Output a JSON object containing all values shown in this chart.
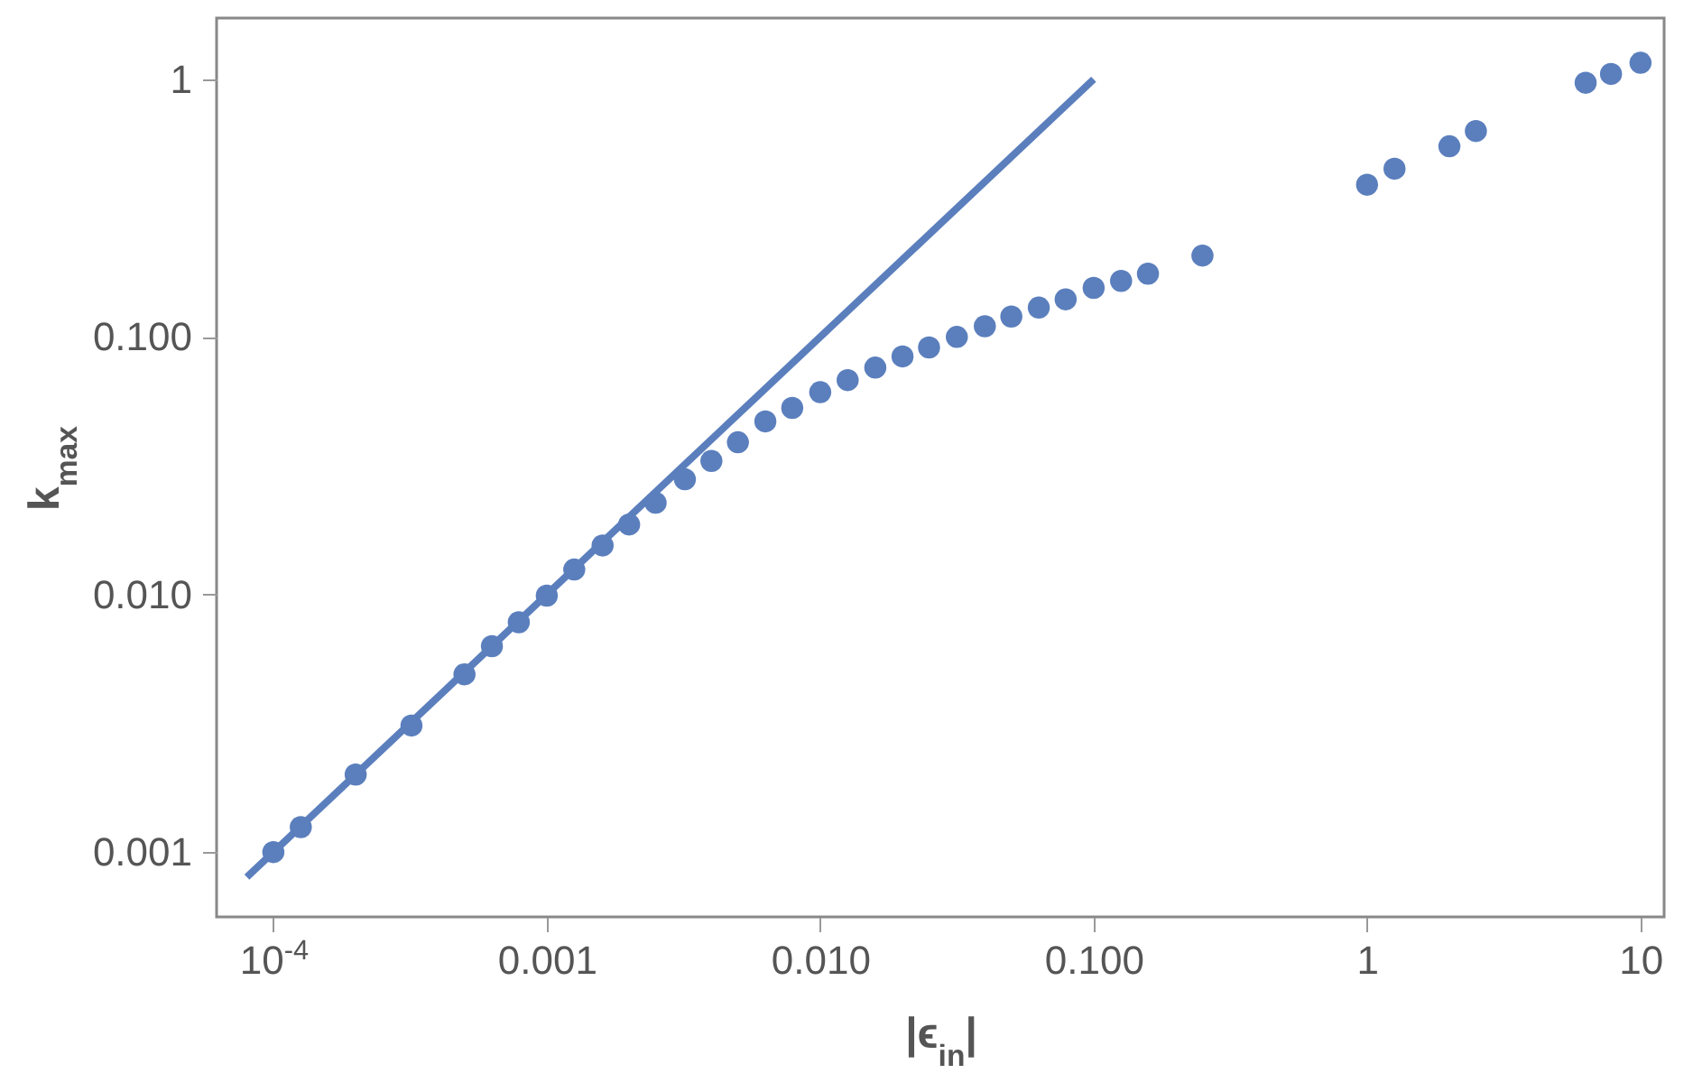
{
  "chart_data": {
    "type": "scatter",
    "xlabel": "|ϵ$_{in}$|",
    "ylabel": "k$_{max}$",
    "log": "xy",
    "grid": false,
    "xlim": [
      6.2e-05,
      12.2
    ],
    "ylim": [
      0.00056,
      1.73
    ],
    "xticks": [
      {
        "value": 0.0001,
        "label": "10$^{-4}$"
      },
      {
        "value": 0.001,
        "label": "0.001"
      },
      {
        "value": 0.01,
        "label": "0.010"
      },
      {
        "value": 0.1,
        "label": "0.100"
      },
      1,
      10
    ],
    "yticks": [
      {
        "value": 0.001,
        "label": "0.001"
      },
      {
        "value": 0.01,
        "label": "0.010"
      },
      {
        "value": 0.1,
        "label": "0.100"
      },
      1
    ],
    "series": [
      {
        "type": "line",
        "color": "#5b7fbd",
        "line_style": "solid",
        "x": [
          8e-05,
          0.1
        ],
        "values": [
          0.0008,
          1
        ]
      },
      {
        "color": "#5b7fbd",
        "marker": "circle",
        "x": [
          0.0001,
          0.000126,
          0.0002,
          0.00032,
          0.0005,
          0.00063,
          0.00079,
          0.001,
          0.00126,
          0.0016,
          0.002,
          0.0025,
          0.0032,
          0.004,
          0.005,
          0.0063,
          0.0079,
          0.01,
          0.0126,
          0.0159,
          0.02,
          0.025,
          0.0316,
          0.04,
          0.05,
          0.063,
          0.079,
          0.1,
          0.126,
          0.158,
          0.25,
          1,
          1.26,
          2,
          2.5,
          6.3,
          7.8,
          10
        ],
        "values": [
          0.001,
          0.00125,
          0.002,
          0.0031,
          0.0049,
          0.0063,
          0.0078,
          0.0099,
          0.0125,
          0.0155,
          0.0187,
          0.0227,
          0.028,
          0.033,
          0.039,
          0.047,
          0.053,
          0.061,
          0.068,
          0.076,
          0.084,
          0.091,
          0.1,
          0.11,
          0.12,
          0.13,
          0.14,
          0.155,
          0.165,
          0.176,
          0.207,
          0.39,
          0.45,
          0.55,
          0.63,
          0.97,
          1.05,
          1.16
        ]
      }
    ]
  }
}
